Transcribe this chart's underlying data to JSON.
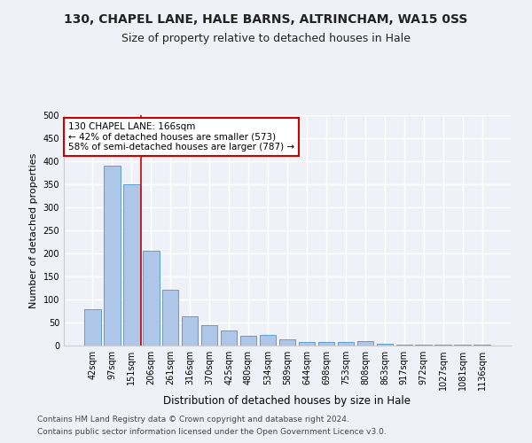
{
  "title1": "130, CHAPEL LANE, HALE BARNS, ALTRINCHAM, WA15 0SS",
  "title2": "Size of property relative to detached houses in Hale",
  "xlabel": "Distribution of detached houses by size in Hale",
  "ylabel": "Number of detached properties",
  "categories": [
    "42sqm",
    "97sqm",
    "151sqm",
    "206sqm",
    "261sqm",
    "316sqm",
    "370sqm",
    "425sqm",
    "480sqm",
    "534sqm",
    "589sqm",
    "644sqm",
    "698sqm",
    "753sqm",
    "808sqm",
    "863sqm",
    "917sqm",
    "972sqm",
    "1027sqm",
    "1081sqm",
    "1136sqm"
  ],
  "values": [
    78,
    390,
    350,
    205,
    122,
    63,
    45,
    33,
    21,
    24,
    14,
    8,
    8,
    7,
    10,
    3,
    2,
    2,
    1,
    1,
    2
  ],
  "bar_color": "#aec6e8",
  "bar_edge_color": "#5a9fd4",
  "vline_color": "#cc0000",
  "annotation_text": "130 CHAPEL LANE: 166sqm\n← 42% of detached houses are smaller (573)\n58% of semi-detached houses are larger (787) →",
  "annotation_box_color": "#ffffff",
  "annotation_box_edge": "#cc0000",
  "ylim": [
    0,
    500
  ],
  "yticks": [
    0,
    50,
    100,
    150,
    200,
    250,
    300,
    350,
    400,
    450,
    500
  ],
  "footer1": "Contains HM Land Registry data © Crown copyright and database right 2024.",
  "footer2": "Contains public sector information licensed under the Open Government Licence v3.0.",
  "bg_color": "#eef2f8",
  "plot_bg_color": "#eef2f8",
  "grid_color": "#ffffff",
  "title1_fontsize": 10,
  "title2_fontsize": 9,
  "xlabel_fontsize": 8.5,
  "ylabel_fontsize": 8,
  "tick_fontsize": 7,
  "annotation_fontsize": 7.5,
  "footer_fontsize": 6.5
}
